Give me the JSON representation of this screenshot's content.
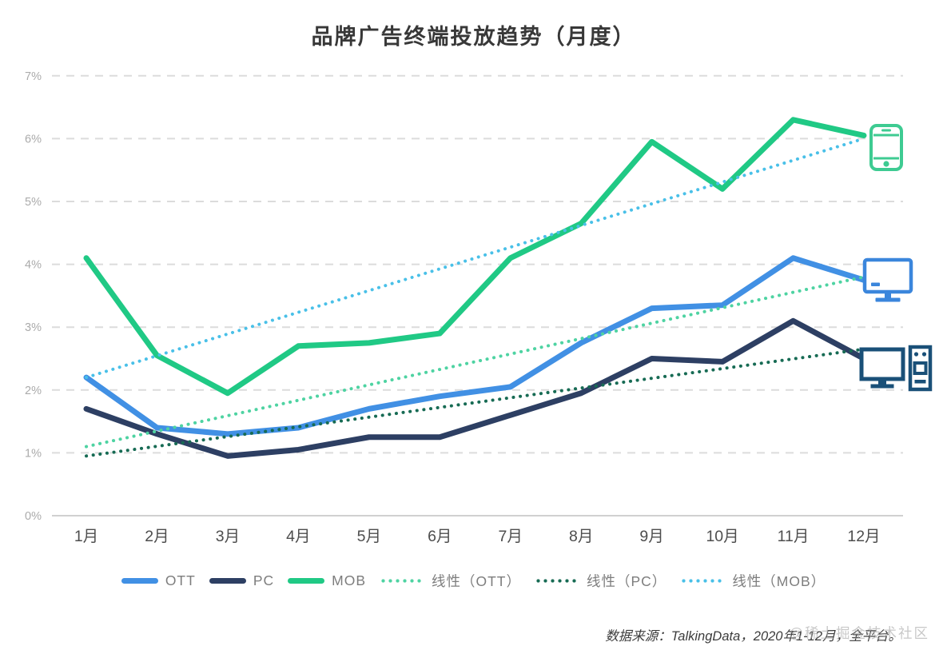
{
  "title": "品牌广告终端投放趋势（月度）",
  "footer": {
    "source_text": "数据来源：TalkingData，2020年1-12月，全平台。",
    "watermark": "@稀土掘金技术社区"
  },
  "colors": {
    "grid": "#dcdcdc",
    "zero_line": "#d0d0d0",
    "y_label": "#ababab",
    "x_label": "#4d4d4d",
    "legend_text": "#7d7d7d",
    "title_text": "#383838"
  },
  "chart_data": {
    "type": "line",
    "title": "品牌广告终端投放趋势（月度）",
    "xlabel": "",
    "ylabel": "",
    "ylim": [
      0,
      7
    ],
    "grid": "horizontal-dashed",
    "legend_position": "bottom",
    "categories": [
      "1月",
      "2月",
      "3月",
      "4月",
      "5月",
      "6月",
      "7月",
      "8月",
      "9月",
      "10月",
      "11月",
      "12月"
    ],
    "y_ticks": [
      "0%",
      "1%",
      "2%",
      "3%",
      "4%",
      "5%",
      "6%",
      "7%"
    ],
    "series": [
      {
        "name": "OTT",
        "style": "solid",
        "color": "#4190e4",
        "values": [
          2.2,
          1.4,
          1.3,
          1.4,
          1.7,
          1.9,
          2.05,
          2.75,
          3.3,
          3.35,
          4.1,
          3.75
        ]
      },
      {
        "name": "PC",
        "style": "solid",
        "color": "#2d3f63",
        "values": [
          1.7,
          1.3,
          0.95,
          1.05,
          1.25,
          1.25,
          1.6,
          1.95,
          2.5,
          2.45,
          3.1,
          2.5
        ]
      },
      {
        "name": "MOB",
        "style": "solid",
        "color": "#20c985",
        "values": [
          4.1,
          2.55,
          1.95,
          2.7,
          2.75,
          2.9,
          4.1,
          4.65,
          5.95,
          5.2,
          6.3,
          6.05
        ]
      },
      {
        "name": "线性（OTT）",
        "style": "dotted",
        "color": "#4ed3a2",
        "trend": [
          1.1,
          3.8
        ]
      },
      {
        "name": "线性（PC）",
        "style": "dotted",
        "color": "#176b54",
        "trend": [
          0.95,
          2.65
        ]
      },
      {
        "name": "线性（MOB）",
        "style": "dotted",
        "color": "#49c0e8",
        "trend": [
          2.2,
          6.0
        ]
      }
    ],
    "end_icons": [
      {
        "icon": "smartphone-icon",
        "series": "MOB",
        "color": "#3ecb92"
      },
      {
        "icon": "tv-icon",
        "series": "OTT",
        "color": "#3b86dc"
      },
      {
        "icon": "desktop-icon",
        "series": "PC",
        "color": "#1a5078"
      }
    ]
  }
}
